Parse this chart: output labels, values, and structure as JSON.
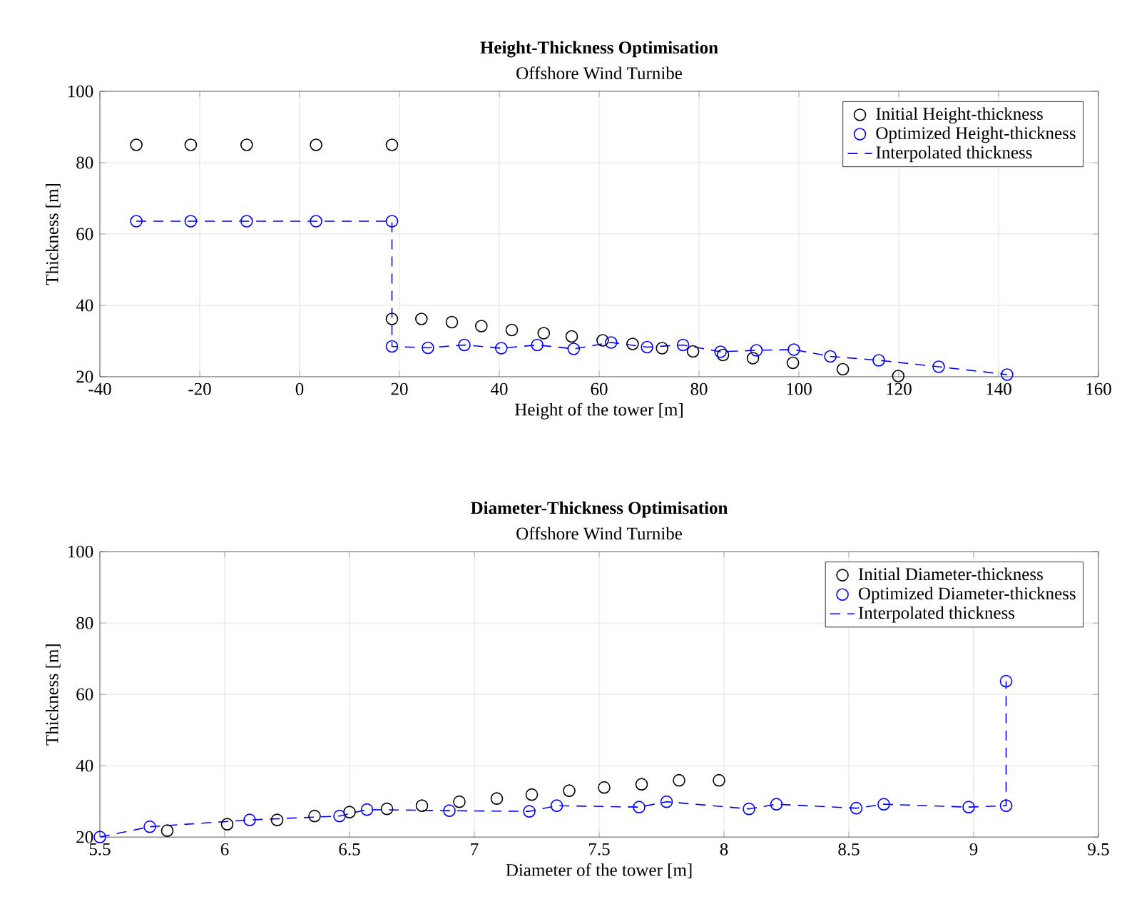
{
  "chart_data": [
    {
      "type": "scatter",
      "title": "Height-Thickness Optimisation",
      "subtitle": "Offshore Wind Turnibe",
      "xlabel": "Height of the tower [m]",
      "ylabel": "Thickness [m]",
      "xlim": [
        -40,
        160
      ],
      "xticks": [
        -40,
        -20,
        0,
        20,
        40,
        60,
        80,
        100,
        120,
        140,
        160
      ],
      "ylim": [
        20,
        100
      ],
      "yticks": [
        20,
        40,
        60,
        80,
        100
      ],
      "grid": true,
      "legend": "top right",
      "marker": "circle",
      "series": [
        {
          "name": "Initial Height-thickness",
          "color": "#000000",
          "x": [
            -32.7,
            -21.8,
            -10.6,
            3.3,
            18.5,
            18.5,
            24.4,
            30.5,
            36.4,
            42.5,
            48.9,
            54.5,
            60.7,
            66.7,
            72.6,
            78.8,
            84.8,
            90.8,
            98.8,
            108.8,
            119.9
          ],
          "values": [
            85,
            85,
            85,
            85,
            85,
            36.2,
            36.2,
            35.3,
            34.2,
            33.1,
            32.2,
            31.3,
            30.2,
            29.2,
            28.0,
            27.1,
            26.1,
            25.2,
            23.9,
            22.1,
            20.2
          ]
        },
        {
          "name": "Optimized Height-thickness",
          "color": "#0000ff",
          "x": [
            -32.7,
            -21.8,
            -10.6,
            3.3,
            18.5,
            18.5,
            25.7,
            33.0,
            40.4,
            47.6,
            54.9,
            62.4,
            69.6,
            76.8,
            84.3,
            91.5,
            99.0,
            106.3,
            116.0,
            128.0,
            141.7
          ],
          "values": [
            63.6,
            63.6,
            63.6,
            63.6,
            63.6,
            28.5,
            28.1,
            28.9,
            28.0,
            28.9,
            27.8,
            29.6,
            28.3,
            28.9,
            27.0,
            27.4,
            27.6,
            25.7,
            24.6,
            22.8,
            20.6
          ]
        },
        {
          "name": "Interpolated thickness",
          "type": "line",
          "color": "#0000ff",
          "marker": "none",
          "line_style": "dashed",
          "x": [
            -32.7,
            -21.8,
            -10.6,
            3.3,
            18.5,
            18.5,
            25.7,
            33.0,
            40.4,
            47.6,
            54.9,
            62.4,
            69.6,
            76.8,
            84.3,
            91.5,
            99.0,
            106.3,
            116.0,
            128.0,
            141.7
          ],
          "values": [
            63.6,
            63.6,
            63.6,
            63.6,
            63.6,
            28.5,
            28.1,
            28.9,
            28.0,
            28.9,
            27.8,
            29.6,
            28.3,
            28.9,
            27.0,
            27.4,
            27.6,
            25.7,
            24.6,
            22.8,
            20.6
          ]
        }
      ]
    },
    {
      "type": "scatter",
      "title": "Diameter-Thickness Optimisation",
      "subtitle": "Offshore Wind Turnibe",
      "xlabel": "Diameter of the tower [m]",
      "ylabel": "Thickness [m]",
      "xlim": [
        5.5,
        9.5
      ],
      "xticks": [
        5.5,
        6,
        6.5,
        7,
        7.5,
        8,
        8.5,
        9,
        9.5
      ],
      "ylim": [
        20,
        100
      ],
      "yticks": [
        20,
        40,
        60,
        80,
        100
      ],
      "grid": true,
      "legend": "top right",
      "marker": "circle",
      "series": [
        {
          "name": "Initial Diameter-thickness",
          "color": "#000000",
          "x": [
            5.77,
            6.01,
            6.21,
            6.36,
            6.5,
            6.65,
            6.79,
            6.94,
            7.09,
            7.23,
            7.38,
            7.52,
            7.67,
            7.82,
            7.98
          ],
          "values": [
            21.8,
            23.6,
            24.8,
            25.9,
            27.0,
            27.9,
            28.8,
            29.9,
            30.8,
            31.9,
            33.0,
            33.9,
            34.8,
            35.9,
            35.9
          ]
        },
        {
          "name": "Optimized Diameter-thickness",
          "color": "#0000ff",
          "x": [
            5.5,
            5.7,
            6.1,
            6.46,
            6.57,
            6.9,
            7.22,
            7.33,
            7.66,
            7.77,
            8.1,
            8.21,
            8.53,
            8.64,
            8.98,
            9.13,
            9.13
          ],
          "values": [
            20.0,
            22.9,
            24.8,
            25.9,
            27.7,
            27.4,
            27.2,
            28.8,
            28.4,
            29.9,
            27.9,
            29.2,
            28.1,
            29.2,
            28.4,
            28.8,
            63.7
          ]
        },
        {
          "name": "Interpolated thickness",
          "type": "line",
          "color": "#0000ff",
          "marker": "none",
          "line_style": "dashed",
          "x": [
            5.5,
            5.7,
            6.1,
            6.46,
            6.57,
            6.9,
            7.22,
            7.33,
            7.66,
            7.77,
            8.1,
            8.21,
            8.53,
            8.64,
            8.98,
            9.13,
            9.13
          ],
          "values": [
            20.0,
            22.9,
            24.8,
            25.9,
            27.7,
            27.4,
            27.2,
            28.8,
            28.4,
            29.9,
            27.9,
            29.2,
            28.1,
            29.2,
            28.4,
            28.8,
            63.7
          ]
        }
      ]
    }
  ]
}
